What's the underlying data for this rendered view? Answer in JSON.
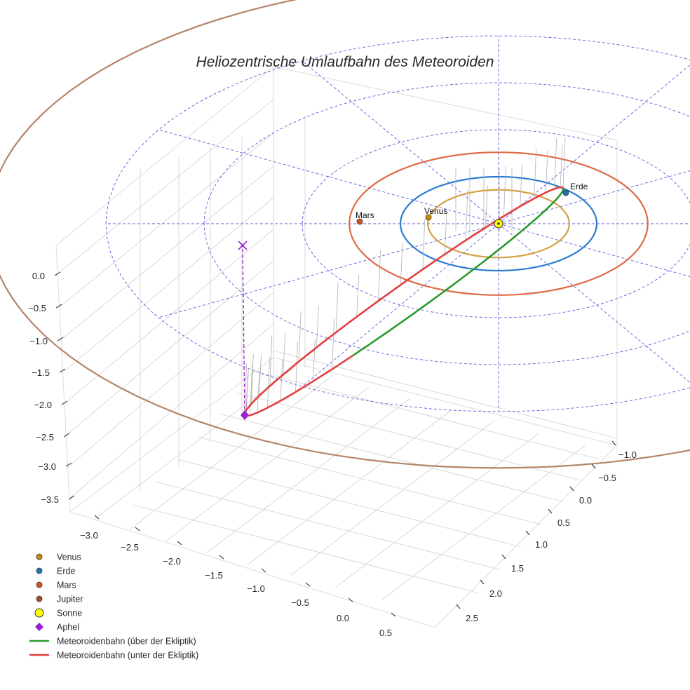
{
  "chart_data": {
    "type": "line3d",
    "title": "Heliozentrische Umlaufbahn des Meteoroiden",
    "axes": {
      "x": {
        "ticks": [
          "−3.0",
          "−2.5",
          "−2.0",
          "−1.5",
          "−1.0",
          "−0.5",
          "0.0",
          "0.5"
        ],
        "range": [
          -3.3,
          0.7
        ]
      },
      "y": {
        "ticks": [
          "−1.0",
          "−0.5",
          "0.0",
          "0.5",
          "1.0",
          "1.5",
          "2.0",
          "2.5"
        ],
        "range": [
          -1.3,
          2.8
        ]
      },
      "z": {
        "ticks": [
          "0.0",
          "−0.5",
          "−1.0",
          "−1.5",
          "−2.0",
          "−2.5",
          "−3.0",
          "−3.5"
        ],
        "range": [
          -3.6,
          0.3
        ]
      }
    },
    "planets": [
      {
        "name": "Venus",
        "label": "Venus",
        "orbit_radius": 0.72,
        "color": "#c98a0c",
        "orbit_color": "#d4a043"
      },
      {
        "name": "Erde",
        "label": "Erde",
        "orbit_radius": 1.0,
        "color": "#1f77b4",
        "orbit_color": "#2b7bd1"
      },
      {
        "name": "Mars",
        "label": "Mars",
        "orbit_radius": 1.52,
        "color": "#d2531f",
        "orbit_color": "#e06a45"
      },
      {
        "name": "Jupiter",
        "label": "",
        "orbit_radius": 5.2,
        "color": "#a0522d",
        "orbit_color": "#b5856a"
      }
    ],
    "sun": {
      "name": "Sonne",
      "color": "#ffff00"
    },
    "aphel": {
      "name": "Aphel",
      "color": "#9b1fd1",
      "z": -2.3
    },
    "meteoroid_orbit": {
      "above": {
        "name": "Meteoroidenbahn (über der Ekliptik)",
        "color": "#2a9a2a"
      },
      "below": {
        "name": "Meteoroidenbahn (unter der Ekliptik)",
        "color": "#e53e3e"
      }
    },
    "legend": {
      "position": "bottom-left",
      "entries": [
        {
          "label": "Venus",
          "marker": "dot",
          "color": "#c98a0c"
        },
        {
          "label": "Erde",
          "marker": "dot",
          "color": "#1f77b4"
        },
        {
          "label": "Mars",
          "marker": "dot",
          "color": "#d2531f"
        },
        {
          "label": "Jupiter",
          "marker": "dot",
          "color": "#a0522d"
        },
        {
          "label": "Sonne",
          "marker": "sun",
          "color": "#ffff00"
        },
        {
          "label": "Aphel",
          "marker": "diamond",
          "color": "#9b1fd1"
        },
        {
          "label": "Meteoroidenbahn (über der Ekliptik)",
          "marker": "line",
          "color": "#2a9a2a"
        },
        {
          "label": "Meteoroidenbahn (unter der Ekliptik)",
          "marker": "line",
          "color": "#e53e3e"
        }
      ]
    },
    "grid": true
  }
}
